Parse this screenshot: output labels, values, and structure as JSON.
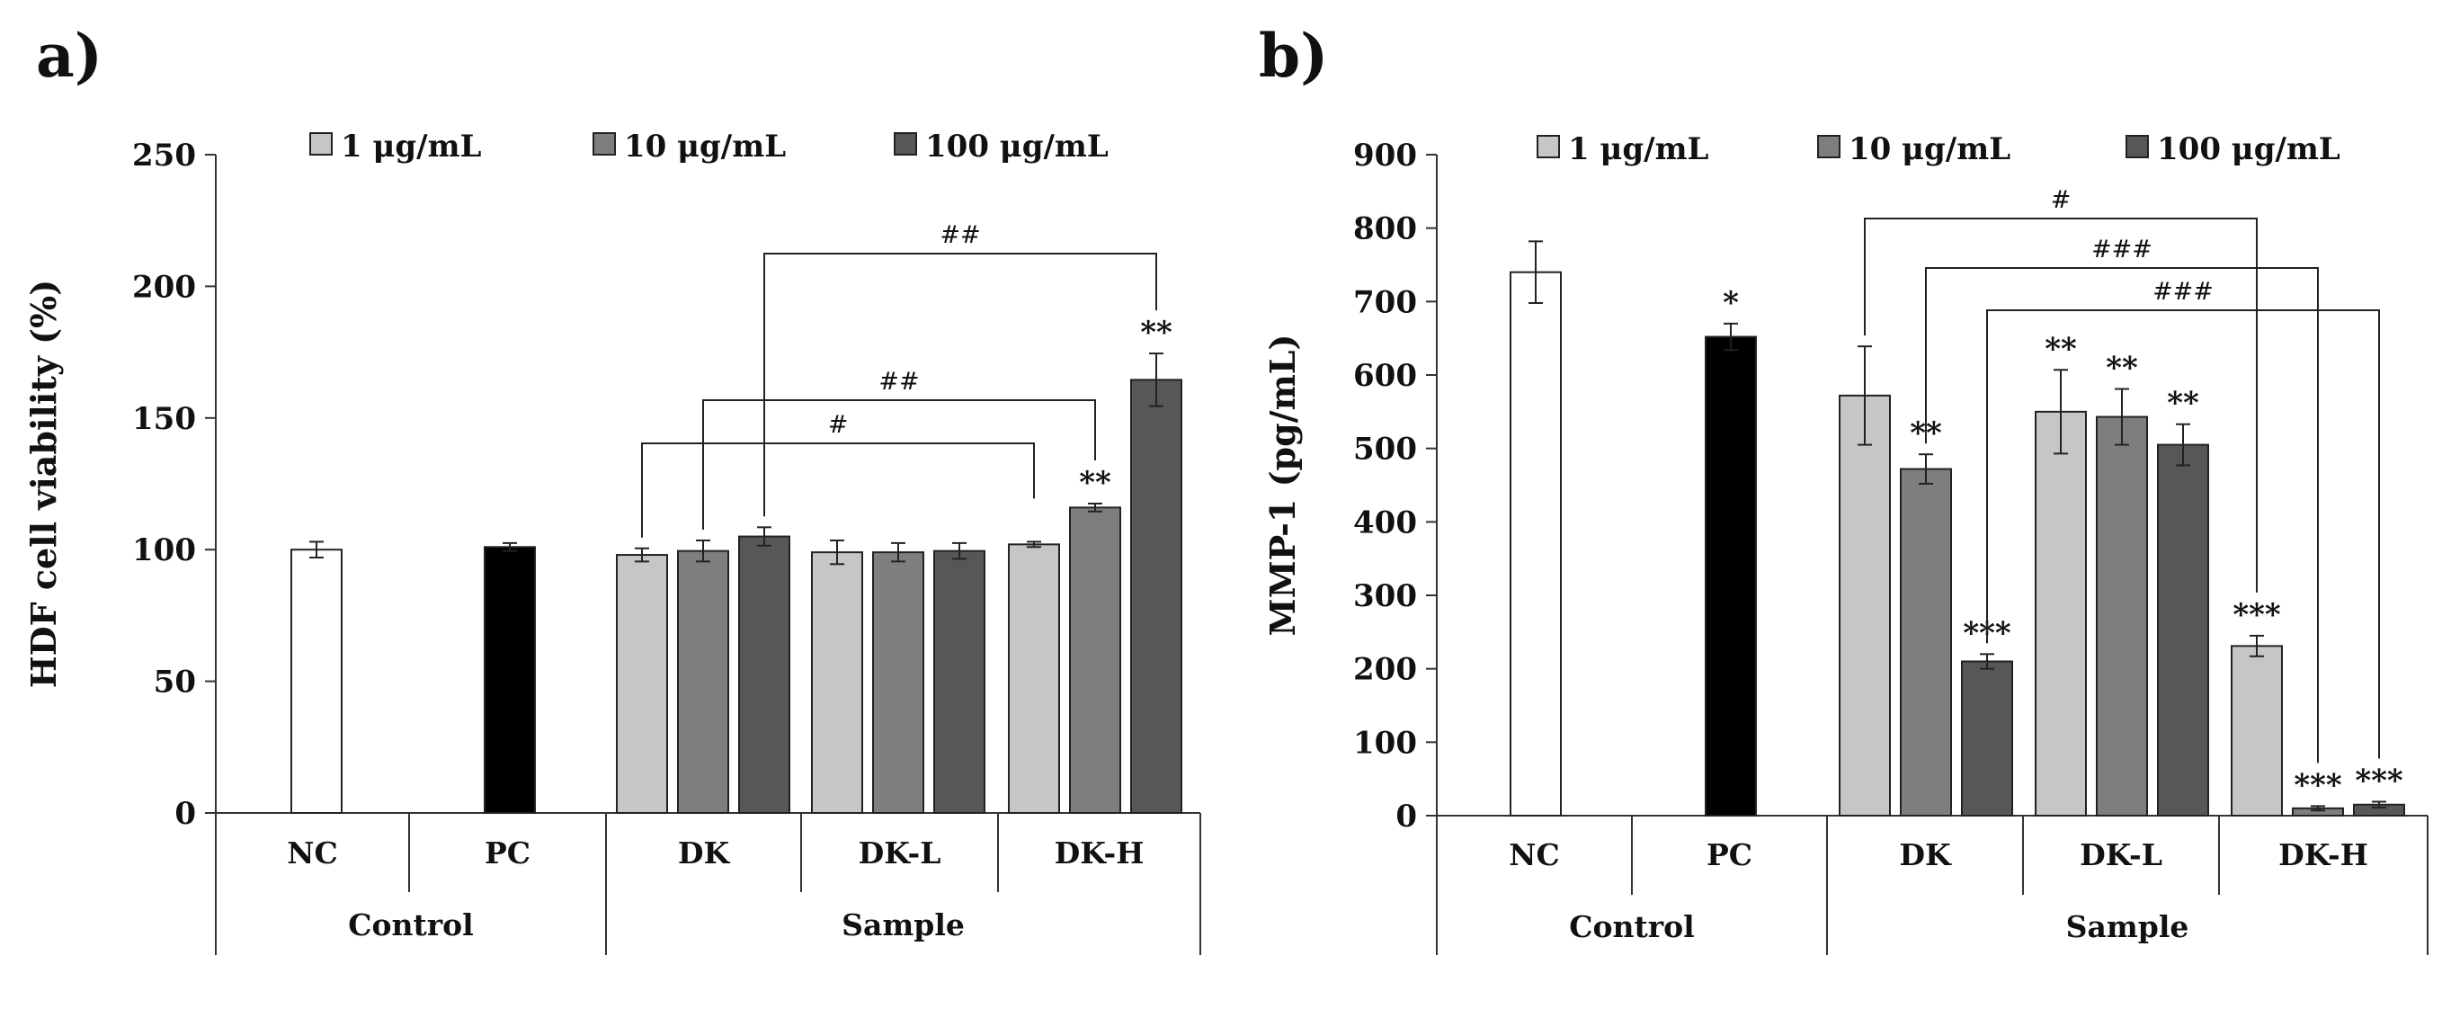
{
  "chart_data": [
    {
      "panel": "a)",
      "type": "bar",
      "ylabel": "HDF cell  viability (%)",
      "ylim": [
        0,
        250
      ],
      "yticks": [
        0,
        50,
        100,
        150,
        200,
        250
      ],
      "legend": [
        "1 μg/mL",
        "10 μg/mL",
        "100 μg/mL"
      ],
      "categories": [
        "NC",
        "PC",
        "DK",
        "DK-L",
        "DK-H"
      ],
      "groups": [
        {
          "label": "Control",
          "categories": [
            "NC",
            "PC"
          ]
        },
        {
          "label": "Sample",
          "categories": [
            "DK",
            "DK-L",
            "DK-H"
          ]
        }
      ],
      "bars": [
        {
          "category": "NC",
          "series": "control-NC",
          "value": 100,
          "err": 3,
          "sig": ""
        },
        {
          "category": "PC",
          "series": "control-PC",
          "value": 101,
          "err": 1.5,
          "sig": ""
        },
        {
          "category": "DK",
          "series": "1 μg/mL",
          "value": 98,
          "err": 2.5,
          "sig": ""
        },
        {
          "category": "DK",
          "series": "10 μg/mL",
          "value": 99.5,
          "err": 4,
          "sig": ""
        },
        {
          "category": "DK",
          "series": "100 μg/mL",
          "value": 105,
          "err": 3.5,
          "sig": ""
        },
        {
          "category": "DK-L",
          "series": "1 μg/mL",
          "value": 99,
          "err": 4.5,
          "sig": ""
        },
        {
          "category": "DK-L",
          "series": "10 μg/mL",
          "value": 99,
          "err": 3.5,
          "sig": ""
        },
        {
          "category": "DK-L",
          "series": "100 μg/mL",
          "value": 99.5,
          "err": 3,
          "sig": ""
        },
        {
          "category": "DK-H",
          "series": "1 μg/mL",
          "value": 102,
          "err": 1,
          "sig": ""
        },
        {
          "category": "DK-H",
          "series": "10 μg/mL",
          "value": 116,
          "err": 1.5,
          "sig": "**"
        },
        {
          "category": "DK-H",
          "series": "100 μg/mL",
          "value": 164.5,
          "err": 10,
          "sig": "**"
        }
      ],
      "brackets": [
        {
          "from_bar": 2,
          "to_bar": 8,
          "label": "#"
        },
        {
          "from_bar": 3,
          "to_bar": 9,
          "label": "##"
        },
        {
          "from_bar": 4,
          "to_bar": 10,
          "label": "##"
        }
      ]
    },
    {
      "panel": "b)",
      "type": "bar",
      "ylabel": "MMP-1 (pg/mL)",
      "ylim": [
        0,
        900
      ],
      "yticks": [
        0,
        100,
        200,
        300,
        400,
        500,
        600,
        700,
        800,
        900
      ],
      "legend": [
        "1 μg/mL",
        "10 μg/mL",
        "100 μg/mL"
      ],
      "categories": [
        "NC",
        "PC",
        "DK",
        "DK-L",
        "DK-H"
      ],
      "groups": [
        {
          "label": "Control",
          "categories": [
            "NC",
            "PC"
          ]
        },
        {
          "label": "Sample",
          "categories": [
            "DK",
            "DK-L",
            "DK-H"
          ]
        }
      ],
      "bars": [
        {
          "category": "NC",
          "series": "control-NC",
          "value": 740,
          "err": 42,
          "sig": ""
        },
        {
          "category": "PC",
          "series": "control-PC",
          "value": 652,
          "err": 18,
          "sig": "*"
        },
        {
          "category": "DK",
          "series": "1 μg/mL",
          "value": 572,
          "err": 67,
          "sig": ""
        },
        {
          "category": "DK",
          "series": "10 μg/mL",
          "value": 472,
          "err": 20,
          "sig": "**"
        },
        {
          "category": "DK",
          "series": "100 μg/mL",
          "value": 210,
          "err": 10,
          "sig": "***"
        },
        {
          "category": "DK-L",
          "series": "1 μg/mL",
          "value": 550,
          "err": 57,
          "sig": "**"
        },
        {
          "category": "DK-L",
          "series": "10 μg/mL",
          "value": 543,
          "err": 38,
          "sig": "**"
        },
        {
          "category": "DK-L",
          "series": "100 μg/mL",
          "value": 505,
          "err": 28,
          "sig": "**"
        },
        {
          "category": "DK-H",
          "series": "1 μg/mL",
          "value": 231,
          "err": 14,
          "sig": "***"
        },
        {
          "category": "DK-H",
          "series": "10 μg/mL",
          "value": 10,
          "err": 3,
          "sig": "***"
        },
        {
          "category": "DK-H",
          "series": "100 μg/mL",
          "value": 15,
          "err": 4,
          "sig": "***"
        }
      ],
      "brackets": [
        {
          "from_bar": 2,
          "to_bar": 8,
          "label": "#"
        },
        {
          "from_bar": 3,
          "to_bar": 9,
          "label": "###"
        },
        {
          "from_bar": 4,
          "to_bar": 10,
          "label": "###"
        }
      ]
    }
  ],
  "colors": {
    "control-NC": "#ffffff",
    "control-PC": "#000000",
    "1 μg/mL": "#c6c6c6",
    "10 μg/mL": "#7e7e7e",
    "100 μg/mL": "#575757",
    "axis": "#333333"
  }
}
